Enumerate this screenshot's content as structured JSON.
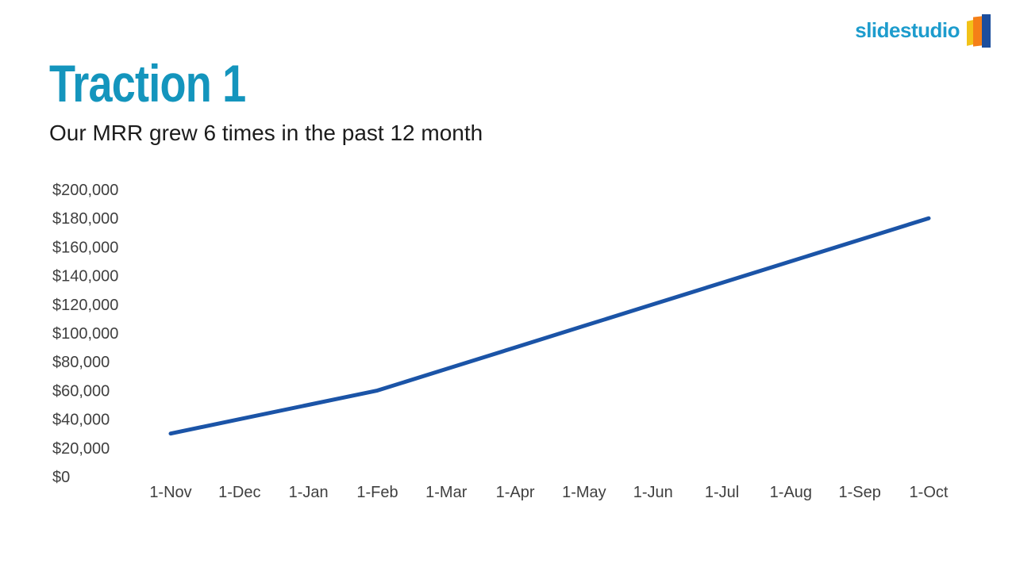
{
  "logo": {
    "text": "slidestudio",
    "text_color": "#1d9ccd",
    "mark_colors": {
      "yellow": "#f2c218",
      "orange": "#f57f17",
      "blue": "#1c4e9d"
    }
  },
  "header": {
    "title": "Traction 1",
    "title_color": "#1495bd",
    "subtitle": "Our MRR grew 6 times in the past 12 month"
  },
  "chart_data": {
    "type": "line",
    "title": "",
    "xlabel": "",
    "ylabel": "",
    "categories": [
      "1-Nov",
      "1-Dec",
      "1-Jan",
      "1-Feb",
      "1-Mar",
      "1-Apr",
      "1-May",
      "1-Jun",
      "1-Jul",
      "1-Aug",
      "1-Sep",
      "1-Oct"
    ],
    "series": [
      {
        "name": "MRR",
        "values": [
          30000,
          40000,
          50000,
          60000,
          75000,
          90000,
          105000,
          120000,
          135000,
          150000,
          165000,
          180000
        ]
      }
    ],
    "y_ticks": {
      "labels": [
        "$200,000",
        "$180,000",
        "$160,000",
        "$140,000",
        "$120,000",
        "$100,000",
        "$80,000",
        "$60,000",
        "$40,000",
        "$20,000",
        "$0"
      ],
      "values": [
        200000,
        180000,
        160000,
        140000,
        120000,
        100000,
        80000,
        60000,
        40000,
        20000,
        0
      ]
    },
    "ylim": [
      0,
      200000
    ],
    "grid": false,
    "legend": false,
    "line_color": "#1b54a7",
    "tick_color": "#3f3f3f"
  }
}
